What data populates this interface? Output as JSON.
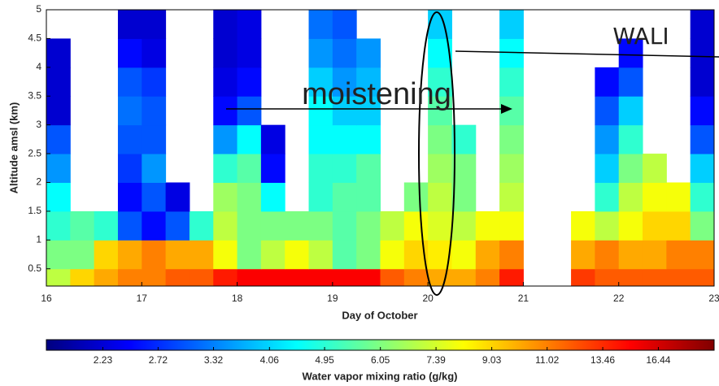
{
  "chart_data": {
    "type": "heatmap",
    "x_label": "Day of October",
    "y_label": "Altitude amsl (km)",
    "xlim": [
      16,
      23
    ],
    "xticks": [
      16,
      17,
      18,
      19,
      20,
      21,
      22,
      23
    ],
    "ylim": [
      0.2,
      5
    ],
    "yticks": [
      0.5,
      1,
      1.5,
      2,
      2.5,
      3,
      3.5,
      4,
      4.5,
      5
    ],
    "colormap": "jet",
    "x_bins": [
      16,
      16.25,
      16.5,
      16.75,
      17,
      17.25,
      17.5,
      17.75,
      18,
      18.25,
      18.5,
      18.75,
      19,
      19.25,
      19.5,
      19.75,
      20,
      20.25,
      20.5,
      20.75,
      21,
      21.25,
      21.5,
      21.75,
      22,
      22.25,
      22.5,
      22.75,
      23
    ],
    "y_bins": [
      0.2,
      0.5,
      1,
      1.5,
      2,
      2.5,
      3,
      3.5,
      4,
      4.5,
      5
    ],
    "values": [
      [
        7,
        9,
        10,
        11,
        11,
        12,
        12,
        14,
        15,
        15,
        15,
        15,
        15,
        15,
        12,
        11,
        10,
        10,
        11,
        14,
        null,
        null,
        13,
        12,
        12,
        12,
        12,
        12
      ],
      [
        6,
        6,
        9,
        10,
        11,
        10,
        10,
        8,
        6,
        7,
        8,
        7,
        5.5,
        6,
        8,
        9,
        8.5,
        8,
        10,
        11,
        null,
        null,
        10,
        11,
        10,
        10,
        11,
        11
      ],
      [
        5,
        5.5,
        5,
        3,
        2.5,
        3,
        5,
        7,
        6,
        6,
        6,
        6,
        5.5,
        6,
        7,
        8,
        7.5,
        7,
        8,
        8,
        null,
        null,
        8,
        7,
        8,
        9,
        9,
        6
      ],
      [
        4.5,
        null,
        null,
        2.5,
        3,
        2.3,
        null,
        6.5,
        6,
        4.5,
        null,
        5,
        5.5,
        5.5,
        null,
        6,
        7,
        6,
        null,
        7,
        null,
        null,
        null,
        5,
        7,
        8,
        8,
        5
      ],
      [
        3.5,
        null,
        null,
        2.8,
        3.5,
        null,
        null,
        5,
        5.5,
        2.5,
        null,
        5,
        5,
        5.5,
        null,
        null,
        6.5,
        6,
        null,
        6.5,
        null,
        null,
        null,
        4,
        6,
        7,
        null,
        4
      ],
      [
        3,
        null,
        null,
        3,
        3,
        null,
        null,
        3.5,
        4.5,
        2.3,
        null,
        4.5,
        4.5,
        4.5,
        null,
        null,
        6,
        5,
        null,
        6,
        null,
        null,
        null,
        3.5,
        5,
        null,
        null,
        3
      ],
      [
        2.2,
        null,
        null,
        3.2,
        3,
        null,
        null,
        2.5,
        3,
        null,
        null,
        4.5,
        4,
        4,
        null,
        null,
        5.5,
        null,
        null,
        5.5,
        null,
        null,
        null,
        3,
        4,
        null,
        null,
        2.5
      ],
      [
        2.2,
        null,
        null,
        3,
        2.8,
        null,
        null,
        2.3,
        2.5,
        null,
        null,
        4,
        3.5,
        3.8,
        null,
        null,
        5,
        null,
        null,
        5,
        null,
        null,
        null,
        2.5,
        3,
        null,
        null,
        2.2
      ],
      [
        2.2,
        null,
        null,
        2.5,
        2.3,
        null,
        null,
        2.2,
        2.3,
        null,
        null,
        3.5,
        3.2,
        3.5,
        null,
        null,
        4.5,
        null,
        null,
        4.5,
        null,
        null,
        null,
        null,
        2.5,
        null,
        null,
        2.2
      ],
      [
        null,
        null,
        null,
        2.2,
        2.2,
        null,
        null,
        2.2,
        2.3,
        null,
        null,
        3.2,
        3,
        null,
        null,
        null,
        4,
        null,
        null,
        4,
        null,
        null,
        null,
        null,
        null,
        null,
        null,
        2.2
      ]
    ],
    "colorbar": {
      "label": "Water vapor mixing ratio (g/kg)",
      "scale": "log",
      "lim": [
        1.82,
        20.09
      ],
      "ticks": [
        2.23,
        2.72,
        3.32,
        4.06,
        4.95,
        6.05,
        7.39,
        9.03,
        11.02,
        13.46,
        16.44
      ]
    },
    "annotations": [
      {
        "text": "moistening",
        "color": "#ff0000"
      },
      {
        "text": "WALI",
        "color": "#000000"
      }
    ]
  }
}
